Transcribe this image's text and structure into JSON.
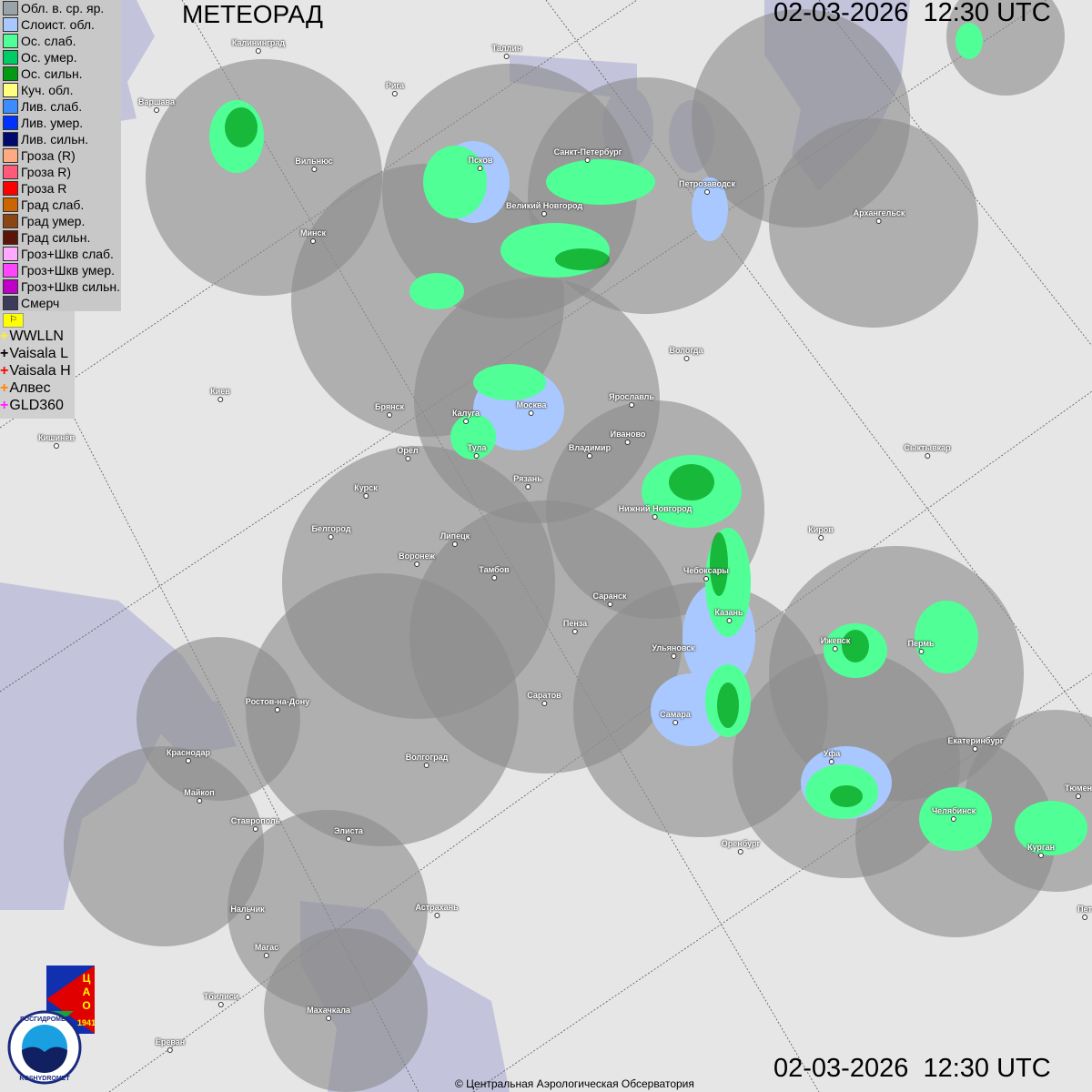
{
  "header": {
    "title": "МЕТЕОРАД",
    "timestamp_top": "02-03-2026  12:30 UTC",
    "timestamp_bottom": "02-03-2026  12:30 UTC"
  },
  "legend": {
    "items": [
      {
        "label": "Обл. в. ср. яр.",
        "color": "#9aa4a8"
      },
      {
        "label": "Слоист. обл.",
        "color": "#a8c8ff"
      },
      {
        "label": "Ос. слаб.",
        "color": "#50ff96"
      },
      {
        "label": "Ос. умер.",
        "color": "#00cc66"
      },
      {
        "label": "Ос. сильн.",
        "color": "#009a14"
      },
      {
        "label": "Куч. обл.",
        "color": "#ffff80"
      },
      {
        "label": "Лив. слаб.",
        "color": "#3c8cff"
      },
      {
        "label": "Лив. умер.",
        "color": "#0032ff"
      },
      {
        "label": "Лив. сильн.",
        "color": "#000a6e"
      },
      {
        "label": "Гроза (R)",
        "color": "#ffaa82"
      },
      {
        "label": "Гроза R)",
        "color": "#ff5a78"
      },
      {
        "label": "Гроза R",
        "color": "#ff0000"
      },
      {
        "label": "Град слаб.",
        "color": "#cc6400"
      },
      {
        "label": "Град умер.",
        "color": "#8c4614"
      },
      {
        "label": "Град сильн.",
        "color": "#5a1408"
      },
      {
        "label": "Гроз+Шкв слаб.",
        "color": "#ffaaff"
      },
      {
        "label": "Гроз+Шкв умер.",
        "color": "#ff46ff"
      },
      {
        "label": "Гроз+Шкв сильн.",
        "color": "#c000c8"
      },
      {
        "label": "Смерч",
        "color": "#3c3c5a"
      }
    ],
    "flag_icon": "flag-icon",
    "lightning": [
      {
        "label": "WWLLN",
        "color": "#ffee33"
      },
      {
        "label": "Vaisala L",
        "color": "#000000"
      },
      {
        "label": "Vaisala H",
        "color": "#ff0000"
      },
      {
        "label": "Алвес",
        "color": "#ff8800"
      },
      {
        "label": "GLD360",
        "color": "#ff22ff"
      }
    ]
  },
  "cities": [
    "Калининград",
    "Таллин",
    "Рига",
    "Варшава",
    "Вильнюс",
    "Псков",
    "Санкт-Петербург",
    "Петрозаводск",
    "Великий Новгород",
    "Архангельск",
    "Минск",
    "Вологда",
    "Киев",
    "Брянск",
    "Москва",
    "Калуга",
    "Ярославль",
    "Иваново",
    "Владимир",
    "Тула",
    "Орёл",
    "Кишинёв",
    "Сыктывкар",
    "Рязань",
    "Курск",
    "Нижний Новгород",
    "Белгород",
    "Киров",
    "Липецк",
    "Воронеж",
    "Тамбов",
    "Чебоксары",
    "Саранск",
    "Пенза",
    "Казань",
    "Ижевск",
    "Пермь",
    "Ульяновск",
    "Саратов",
    "Ростов-на-Дону",
    "Самара",
    "Екатеринбург",
    "Краснодар",
    "Волгоград",
    "Уфа",
    "Майкоп",
    "Челябинск",
    "Ставрополь",
    "Элиста",
    "Оренбург",
    "Курган",
    "Тюмен",
    "Нальчик",
    "Астрахань",
    "Магас",
    "Тбилиси",
    "Махачкала",
    "Ереван",
    "Пет"
  ],
  "logos": {
    "cao": "ЦАО 1941",
    "rosgidromet": "РОСГИДРОМЕТ ROSHYDROMET"
  },
  "footer": {
    "copyright": "© Центральная Аэрологическая Обсерватория"
  }
}
